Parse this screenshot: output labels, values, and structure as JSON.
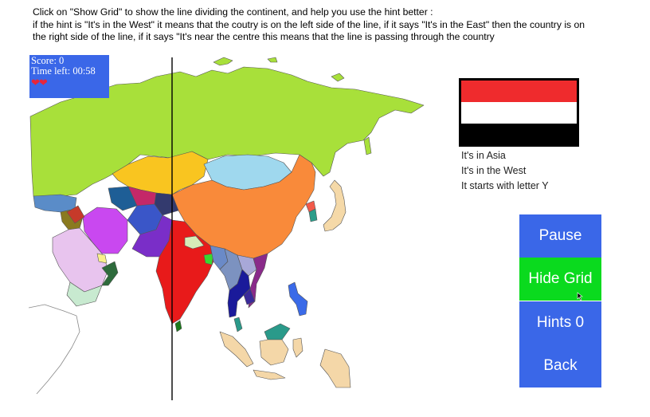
{
  "instructions": {
    "line1": "Click on \"Show Grid\" to show the line dividing the continent, and help you use the hint better :",
    "line2": "if the hint is \"It's in the West\" it means that the coutry is on the left side of the line, if it says \"It's in the East\" then the country is on",
    "line3": "the right side of the line, if it says \"It's near the centre this means that the line is passing through the country"
  },
  "status": {
    "score_label": "Score: 0",
    "time_label": "Time left: 00:58",
    "lives": 2,
    "hearts": "❤❤"
  },
  "flag": {
    "colors": [
      "#ef2b2d",
      "#ffffff",
      "#000000"
    ]
  },
  "hints": [
    "It's in Asia",
    "It's in the West",
    "It starts with letter Y"
  ],
  "buttons": {
    "pause": "Pause",
    "grid": "Hide Grid",
    "hints": "Hints 0",
    "back": "Back"
  },
  "colors": {
    "button_blue": "#3a67e8",
    "button_active_green": "#0ada1e"
  }
}
